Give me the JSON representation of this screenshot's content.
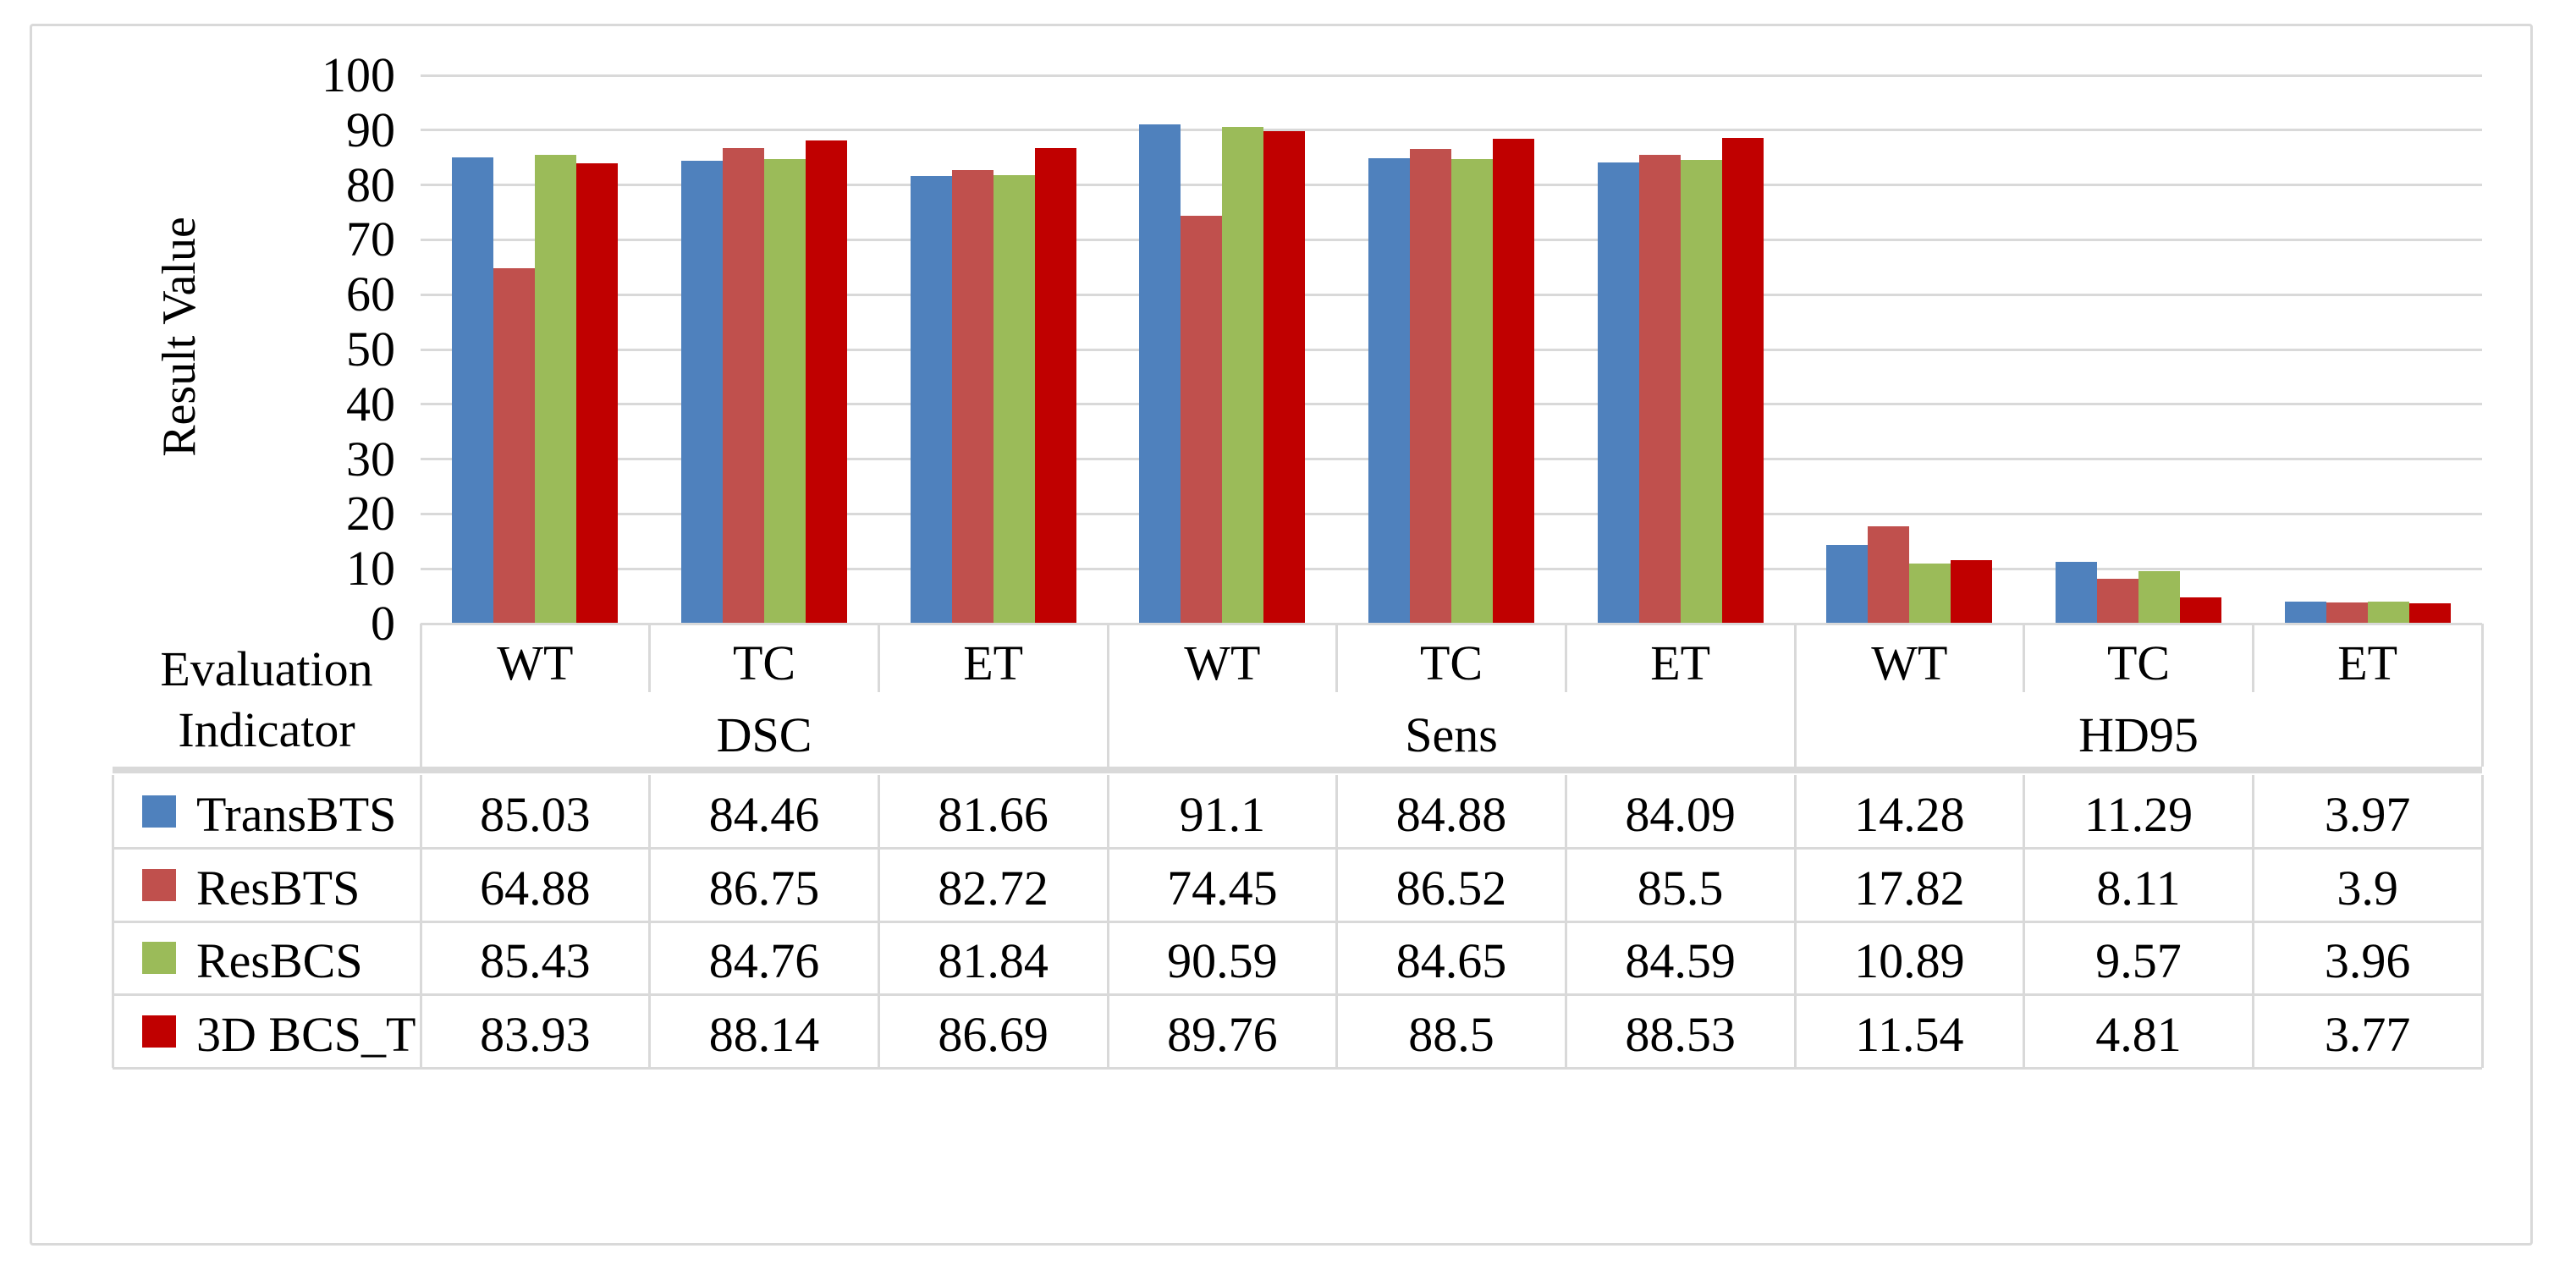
{
  "figure": {
    "border_color": "#d9d9d9",
    "background": "#ffffff",
    "gridline_color": "#d9d9d9",
    "text_color": "#000000"
  },
  "chart_data": {
    "type": "bar",
    "title": "",
    "ylabel": "Result Value",
    "xlabel": "Evaluation Indicator",
    "ylim": [
      0,
      100
    ],
    "yticks": [
      0,
      10,
      20,
      30,
      40,
      50,
      60,
      70,
      80,
      90,
      100
    ],
    "grid": true,
    "legend_position": "table-left",
    "groups": [
      "DSC",
      "Sens",
      "HD95"
    ],
    "categories": [
      "WT",
      "TC",
      "ET",
      "WT",
      "TC",
      "ET",
      "WT",
      "TC",
      "ET"
    ],
    "series": [
      {
        "name": "TransBTS",
        "color": "#4F81BD",
        "values": [
          85.03,
          84.46,
          81.66,
          91.1,
          84.88,
          84.09,
          14.28,
          11.29,
          3.97
        ]
      },
      {
        "name": "ResBTS",
        "color": "#C0504D",
        "values": [
          64.88,
          86.75,
          82.72,
          74.45,
          86.52,
          85.5,
          17.82,
          8.11,
          3.9
        ]
      },
      {
        "name": "ResBCS",
        "color": "#9BBB59",
        "values": [
          85.43,
          84.76,
          81.84,
          90.59,
          84.65,
          84.59,
          10.89,
          9.57,
          3.96
        ]
      },
      {
        "name": "3D BCS_T",
        "color": "#C00000",
        "values": [
          83.93,
          88.14,
          86.69,
          89.76,
          88.5,
          88.53,
          11.54,
          4.81,
          3.77
        ]
      }
    ]
  },
  "table": {
    "corner_label_line1": "Evaluation",
    "corner_label_line2": "Indicator",
    "group_headers": [
      "DSC",
      "Sens",
      "HD95"
    ],
    "sub_headers": [
      "WT",
      "TC",
      "ET",
      "WT",
      "TC",
      "ET",
      "WT",
      "TC",
      "ET"
    ],
    "rows": [
      {
        "name": "TransBTS",
        "values": [
          "85.03",
          "84.46",
          "81.66",
          "91.1",
          "84.88",
          "84.09",
          "14.28",
          "11.29",
          "3.97"
        ]
      },
      {
        "name": "ResBTS",
        "values": [
          "64.88",
          "86.75",
          "82.72",
          "74.45",
          "86.52",
          "85.5",
          "17.82",
          "8.11",
          "3.9"
        ]
      },
      {
        "name": "ResBCS",
        "values": [
          "85.43",
          "84.76",
          "81.84",
          "90.59",
          "84.65",
          "84.59",
          "10.89",
          "9.57",
          "3.96"
        ]
      },
      {
        "name": "3D BCS_T",
        "values": [
          "83.93",
          "88.14",
          "86.69",
          "89.76",
          "88.5",
          "88.53",
          "11.54",
          "4.81",
          "3.77"
        ]
      }
    ]
  }
}
